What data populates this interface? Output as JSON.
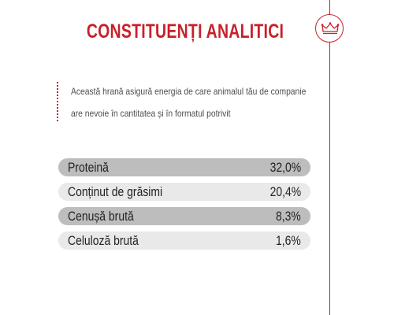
{
  "header": {
    "title": "CONSTITUENȚI ANALITICI",
    "accent_color": "#c8202a",
    "badge_icon": "crown-icon"
  },
  "description": {
    "lines": [
      "Această hrană asigură energia de care animalul tău de companie",
      "are nevoie în cantitatea și în formatul potrivit"
    ]
  },
  "constituents": [
    {
      "label": "Proteină",
      "value": "32,0%"
    },
    {
      "label": "Conținut de grăsimi",
      "value": "20,4%"
    },
    {
      "label": "Cenușă brută",
      "value": "8,3%"
    },
    {
      "label": "Celuloză brută",
      "value": "1,6%"
    }
  ]
}
